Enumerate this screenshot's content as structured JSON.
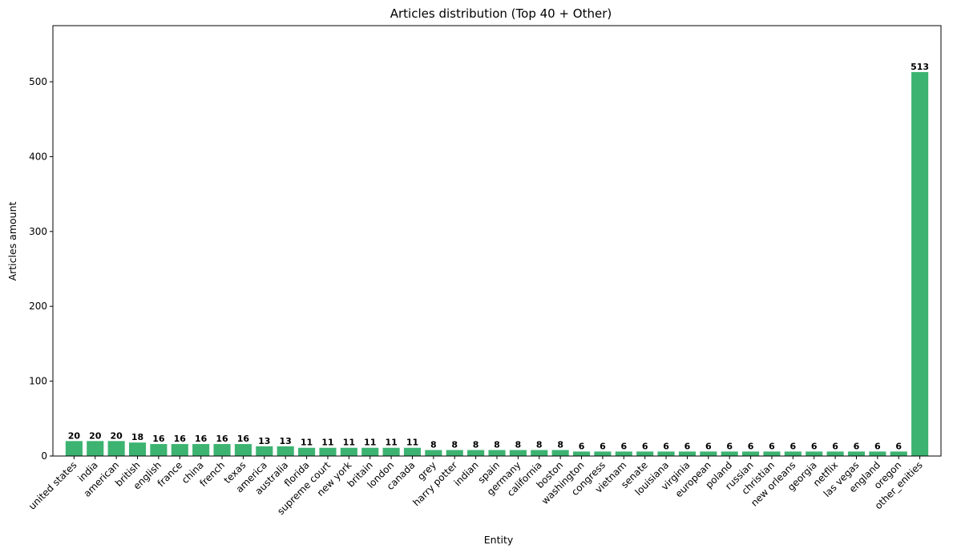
{
  "chart_data": {
    "type": "bar",
    "title": "Articles distribution (Top 40 + Other)",
    "xlabel": "Entity",
    "ylabel": "Articles amount",
    "ylim": [
      0,
      575
    ],
    "yticks": [
      0,
      100,
      200,
      300,
      400,
      500
    ],
    "grid": false,
    "bar_color": "#3cb371",
    "categories": [
      "united states",
      "india",
      "american",
      "british",
      "english",
      "france",
      "china",
      "french",
      "texas",
      "america",
      "australia",
      "florida",
      "supreme court",
      "new york",
      "britain",
      "london",
      "canada",
      "grey",
      "harry potter",
      "indian",
      "spain",
      "germany",
      "california",
      "boston",
      "washington",
      "congress",
      "vietnam",
      "senate",
      "louisiana",
      "virginia",
      "european",
      "poland",
      "russian",
      "christian",
      "new orleans",
      "georgia",
      "netflix",
      "las vegas",
      "england",
      "oregon",
      "other_enities"
    ],
    "values": [
      20,
      20,
      20,
      18,
      16,
      16,
      16,
      16,
      16,
      13,
      13,
      11,
      11,
      11,
      11,
      11,
      11,
      8,
      8,
      8,
      8,
      8,
      8,
      8,
      6,
      6,
      6,
      6,
      6,
      6,
      6,
      6,
      6,
      6,
      6,
      6,
      6,
      6,
      6,
      6,
      513
    ]
  }
}
